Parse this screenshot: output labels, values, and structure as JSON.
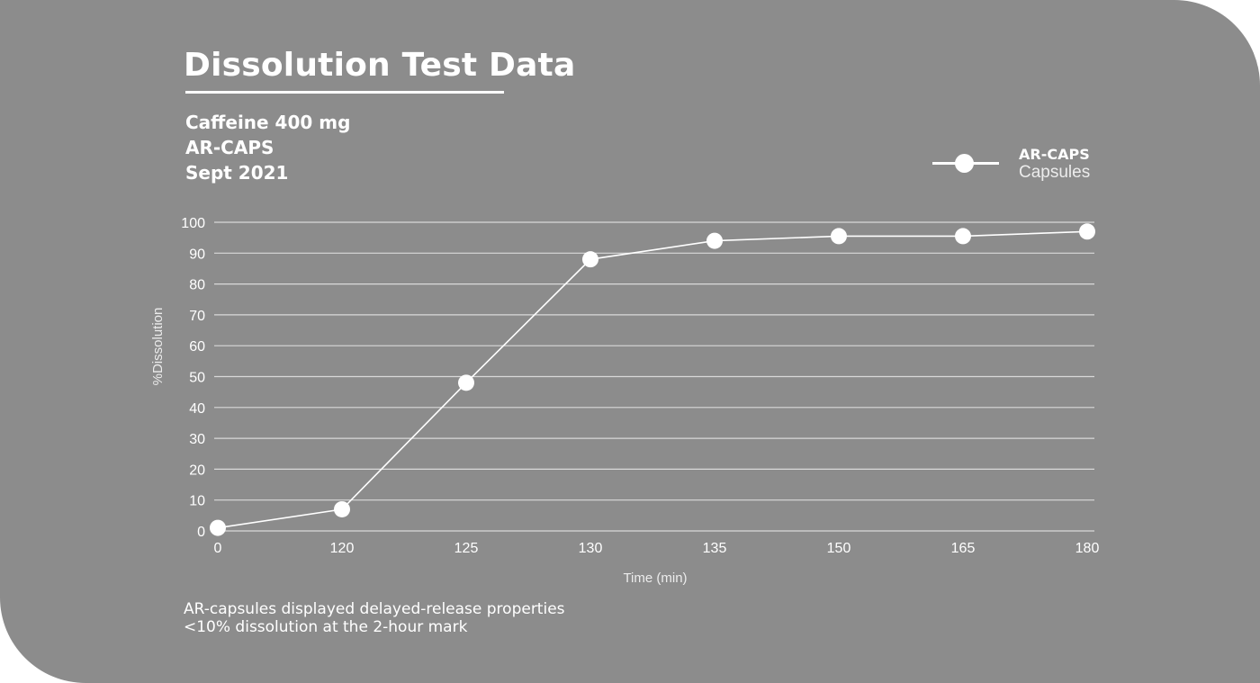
{
  "header": {
    "title": "Dissolution Test Data",
    "subtitle_lines": [
      "Caffeine 400 mg",
      "AR-CAPS",
      "Sept 2021"
    ]
  },
  "legend": {
    "name": "AR-CAPS",
    "sub": "Capsules"
  },
  "footnote": {
    "line1": "AR-capsules displayed delayed-release properties",
    "line2": "<10% dissolution at the 2-hour mark"
  },
  "colors": {
    "background": "#8c8c8c",
    "foreground": "#ffffff",
    "gridline": "#d9d9d9"
  },
  "chart_data": {
    "type": "line",
    "title": "Dissolution Test Data",
    "xlabel": "Time (min)",
    "ylabel": "%Dissolution",
    "x_scale": "categorical",
    "categories": [
      "0",
      "120",
      "125",
      "130",
      "135",
      "150",
      "165",
      "180"
    ],
    "yticks": [
      "0",
      "10",
      "20",
      "30",
      "40",
      "50",
      "60",
      "70",
      "80",
      "90",
      "100"
    ],
    "ylim": [
      0,
      100
    ],
    "grid": true,
    "legend_position": "top-right",
    "series": [
      {
        "name": "AR-CAPS",
        "values": [
          1,
          7,
          48,
          88,
          94,
          95.5,
          95.5,
          97
        ]
      }
    ]
  }
}
